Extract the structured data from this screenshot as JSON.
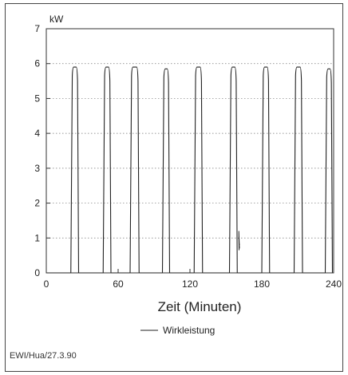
{
  "chart_data": {
    "type": "line",
    "ylabel": "kW",
    "xlabel": "Zeit (Minuten)",
    "xlim": [
      0,
      240
    ],
    "ylim": [
      0,
      7
    ],
    "x_ticks": [
      0,
      60,
      120,
      180,
      240
    ],
    "y_ticks": [
      0,
      1,
      2,
      3,
      4,
      5,
      6,
      7
    ],
    "grid": "horizontal-dotted",
    "legend_position": "bottom-center",
    "series": [
      {
        "name": "Wirkleistung",
        "color": "#222222",
        "pulses": [
          {
            "start": 20.5,
            "end": 27.0,
            "peak": 5.9
          },
          {
            "start": 47.5,
            "end": 54.0,
            "peak": 5.9
          },
          {
            "start": 70.0,
            "end": 77.5,
            "peak": 5.9
          },
          {
            "start": 97.0,
            "end": 103.0,
            "peak": 5.85
          },
          {
            "start": 123.5,
            "end": 130.5,
            "peak": 5.9
          },
          {
            "start": 153.0,
            "end": 159.5,
            "peak": 5.9
          },
          {
            "start": 180.0,
            "end": 186.5,
            "peak": 5.9
          },
          {
            "start": 207.0,
            "end": 214.0,
            "peak": 5.9
          },
          {
            "start": 233.0,
            "end": 239.0,
            "peak": 5.85
          }
        ],
        "spike": {
          "x": 161.0,
          "values": [
            1.2,
            0.7,
            1.0,
            0.8
          ]
        }
      }
    ]
  },
  "footer": "EWI/Hua/27.3.90"
}
